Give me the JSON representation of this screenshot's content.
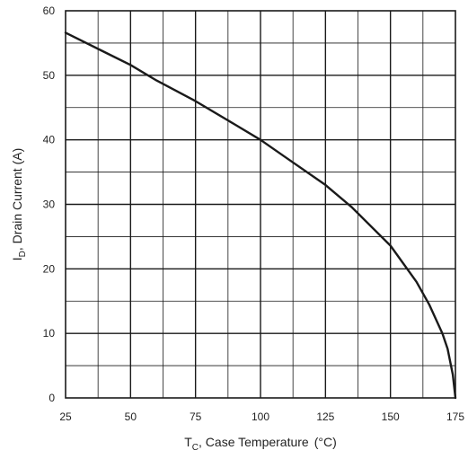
{
  "chart_data": {
    "type": "line",
    "title": "",
    "xlabel": {
      "main": "T",
      "subscript": "C",
      "rest": ", Case Temperature",
      "unit": "(°C)"
    },
    "ylabel": {
      "main": "I",
      "subscript": "D",
      "rest": ", Drain Current (A)"
    },
    "xlim": [
      25,
      175
    ],
    "ylim": [
      0,
      60
    ],
    "x_ticks": [
      "25",
      "50",
      "75",
      "100",
      "125",
      "150",
      "175"
    ],
    "y_ticks": [
      "0",
      "10",
      "20",
      "30",
      "40",
      "50",
      "60"
    ],
    "minor_grid_x_step": 12.5,
    "minor_grid_y_step": 5,
    "major_grid_x_step": 25,
    "major_grid_y_step": 10,
    "grid": true,
    "series": [
      {
        "color": "#1a1a1a",
        "x": [
          25,
          40,
          50,
          60,
          75,
          90,
          100,
          110,
          125,
          135,
          150,
          160,
          165,
          170,
          172,
          174,
          175
        ],
        "y": [
          56.6,
          53.6,
          51.6,
          49.2,
          46.0,
          42.4,
          40.0,
          37.2,
          33.0,
          29.6,
          23.6,
          18.0,
          14.4,
          10.0,
          7.6,
          3.6,
          0
        ]
      }
    ]
  }
}
